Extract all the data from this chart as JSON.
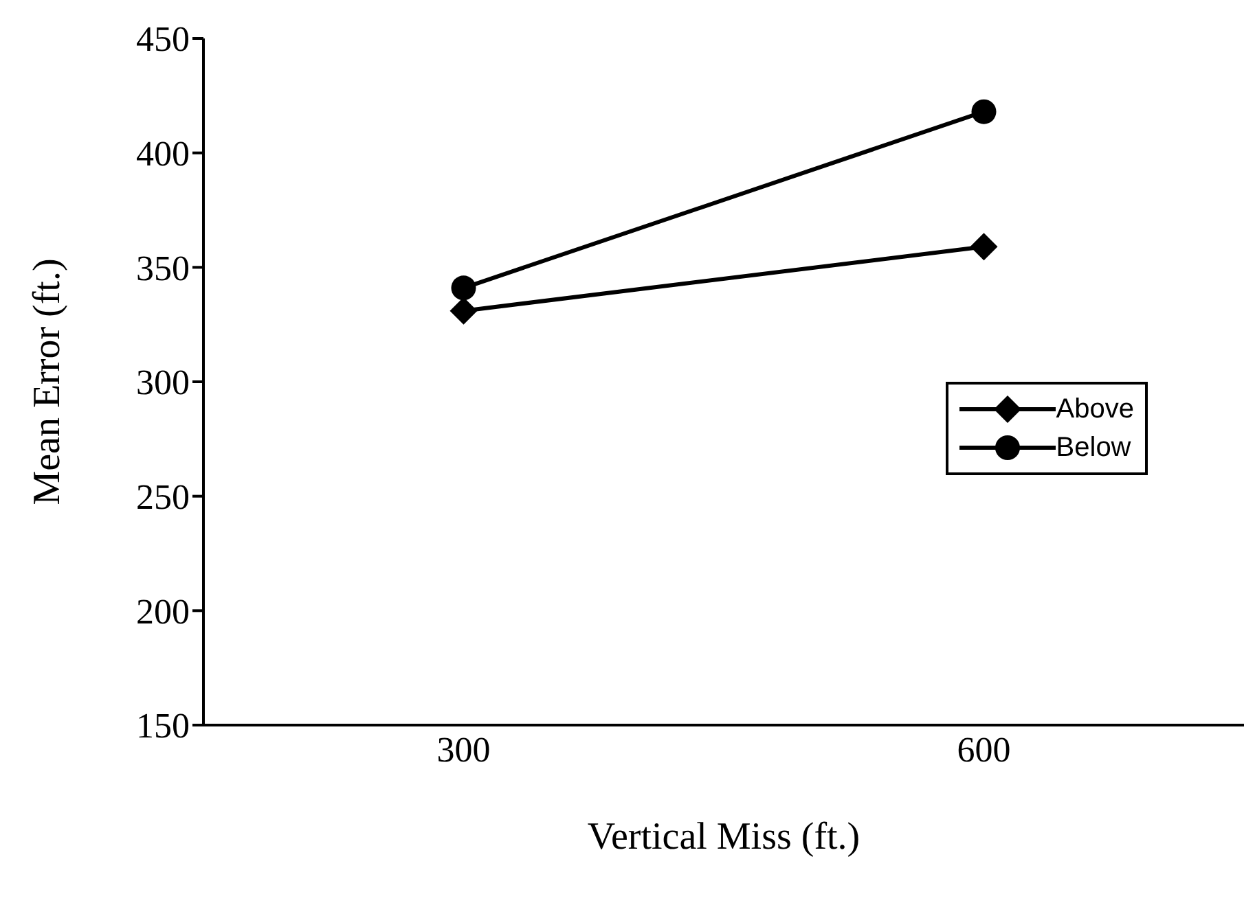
{
  "chart_data": {
    "type": "line",
    "xlabel": "Vertical Miss (ft.)",
    "ylabel": "Mean Error (ft.)",
    "categories": [
      "300",
      "600"
    ],
    "series": [
      {
        "name": "Above",
        "color": "#000000",
        "marker": "diamond",
        "values": [
          331,
          359
        ]
      },
      {
        "name": "Below",
        "color": "#000000",
        "marker": "circle",
        "values": [
          341,
          418
        ]
      }
    ],
    "ylim": [
      150,
      450
    ],
    "yticks": [
      150,
      200,
      250,
      300,
      350,
      400,
      450
    ],
    "grid": false,
    "legend": "right",
    "line_style": "solid"
  }
}
